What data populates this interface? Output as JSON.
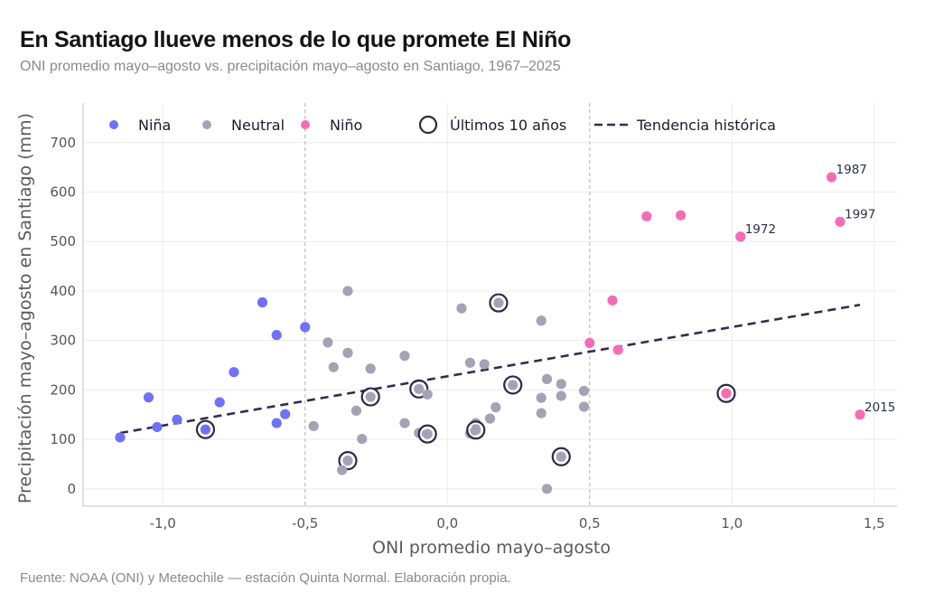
{
  "title": "En Santiago llueve menos de lo que promete El Niño",
  "subtitle": "ONI promedio mayo–agosto vs. precipitación mayo–agosto en Santiago, 1967–2025",
  "source": "Fuente: NOAA (ONI) y Meteochile — estación Quinta Normal. Elaboración propia.",
  "colors": {
    "nina": "#7070f8",
    "neutral": "#a3a3b6",
    "nino": "#f56cb6",
    "highlight_ring": "#2a2a44",
    "trend": "#2e2e4f",
    "grid": "#ececec",
    "threshold": "#bdbdbd"
  },
  "chart_data": {
    "type": "scatter",
    "title": "En Santiago llueve menos de lo que promete El Niño",
    "subtitle": "ONI promedio mayo–agosto vs. precipitación mayo–agosto en Santiago, 1967–2025",
    "xlabel": "ONI promedio mayo–agosto",
    "ylabel": "Precipitación mayo–agosto en Santiago (mm)",
    "xlim": [
      -1.28,
      1.58
    ],
    "ylim": [
      -35,
      780
    ],
    "xticks": [
      -1.0,
      -0.5,
      0.0,
      0.5,
      1.0,
      1.5
    ],
    "xtick_labels": [
      "-1,0",
      "-0,5",
      "0,0",
      "0,5",
      "1,0",
      "1,5"
    ],
    "yticks": [
      0,
      100,
      200,
      300,
      400,
      500,
      600,
      700
    ],
    "ytick_labels": [
      "0",
      "100",
      "200",
      "300",
      "400",
      "500",
      "600",
      "700"
    ],
    "grid": true,
    "threshold_lines_x": [
      -0.5,
      0.5
    ],
    "legend_position": "top",
    "legend": [
      {
        "key": "nina",
        "label": "Niña",
        "symbol": "dot"
      },
      {
        "key": "neutral",
        "label": "Neutral",
        "symbol": "dot"
      },
      {
        "key": "nino",
        "label": "Niño",
        "symbol": "dot"
      },
      {
        "key": "recent",
        "label": "Últimos 10 años",
        "symbol": "ring"
      },
      {
        "key": "trend",
        "label": "Tendencia histórica",
        "symbol": "dash"
      }
    ],
    "series": [
      {
        "name": "Niña",
        "key": "nina",
        "points": [
          {
            "x": -1.15,
            "y": 104
          },
          {
            "x": -1.05,
            "y": 185
          },
          {
            "x": -1.02,
            "y": 125
          },
          {
            "x": -0.95,
            "y": 140
          },
          {
            "x": -0.85,
            "y": 120,
            "recent": true
          },
          {
            "x": -0.8,
            "y": 175
          },
          {
            "x": -0.75,
            "y": 236
          },
          {
            "x": -0.65,
            "y": 377
          },
          {
            "x": -0.6,
            "y": 311
          },
          {
            "x": -0.6,
            "y": 133
          },
          {
            "x": -0.57,
            "y": 151
          },
          {
            "x": -0.5,
            "y": 327
          }
        ]
      },
      {
        "name": "Neutral",
        "key": "neutral",
        "points": [
          {
            "x": -0.47,
            "y": 127
          },
          {
            "x": -0.42,
            "y": 296
          },
          {
            "x": -0.4,
            "y": 246
          },
          {
            "x": -0.35,
            "y": 400
          },
          {
            "x": -0.35,
            "y": 275
          },
          {
            "x": -0.35,
            "y": 57,
            "recent": true
          },
          {
            "x": -0.37,
            "y": 38
          },
          {
            "x": -0.32,
            "y": 158
          },
          {
            "x": -0.3,
            "y": 101
          },
          {
            "x": -0.27,
            "y": 243
          },
          {
            "x": -0.27,
            "y": 186,
            "recent": true
          },
          {
            "x": -0.15,
            "y": 269
          },
          {
            "x": -0.15,
            "y": 133
          },
          {
            "x": -0.1,
            "y": 202,
            "recent": true
          },
          {
            "x": -0.07,
            "y": 191
          },
          {
            "x": -0.1,
            "y": 113
          },
          {
            "x": -0.07,
            "y": 111,
            "recent": true
          },
          {
            "x": 0.05,
            "y": 365
          },
          {
            "x": 0.08,
            "y": 255
          },
          {
            "x": 0.13,
            "y": 252
          },
          {
            "x": 0.1,
            "y": 133
          },
          {
            "x": 0.08,
            "y": 112
          },
          {
            "x": 0.1,
            "y": 119,
            "recent": true
          },
          {
            "x": 0.15,
            "y": 142
          },
          {
            "x": 0.17,
            "y": 165
          },
          {
            "x": 0.18,
            "y": 376,
            "recent": true
          },
          {
            "x": 0.23,
            "y": 210,
            "recent": true
          },
          {
            "x": 0.33,
            "y": 340
          },
          {
            "x": 0.33,
            "y": 184
          },
          {
            "x": 0.33,
            "y": 153
          },
          {
            "x": 0.35,
            "y": 222
          },
          {
            "x": 0.4,
            "y": 212
          },
          {
            "x": 0.4,
            "y": 188
          },
          {
            "x": 0.4,
            "y": 65,
            "recent": true
          },
          {
            "x": 0.35,
            "y": 0
          },
          {
            "x": 0.48,
            "y": 198
          },
          {
            "x": 0.48,
            "y": 166
          }
        ]
      },
      {
        "name": "Niño",
        "key": "nino",
        "points": [
          {
            "x": 0.5,
            "y": 295
          },
          {
            "x": 0.58,
            "y": 381
          },
          {
            "x": 0.6,
            "y": 281
          },
          {
            "x": 0.7,
            "y": 551
          },
          {
            "x": 0.82,
            "y": 553
          },
          {
            "x": 0.98,
            "y": 193,
            "recent": true
          },
          {
            "x": 1.03,
            "y": 510,
            "label": "1972"
          },
          {
            "x": 1.35,
            "y": 630,
            "label": "1987"
          },
          {
            "x": 1.38,
            "y": 540,
            "label": "1997"
          },
          {
            "x": 1.45,
            "y": 150,
            "label": "2015"
          }
        ]
      }
    ],
    "trend": {
      "name": "Tendencia histórica",
      "x": [
        -1.15,
        1.45
      ],
      "y": [
        113,
        372
      ]
    }
  }
}
